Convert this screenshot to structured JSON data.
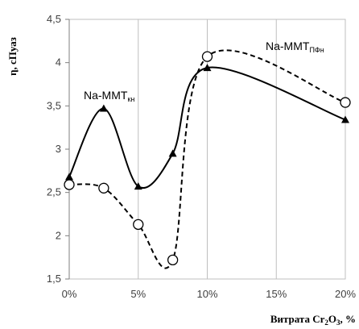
{
  "chart_data": {
    "type": "line",
    "x_tick_labels": [
      "0%",
      "5%",
      "10%",
      "15%",
      "20%"
    ],
    "y_tick_labels": [
      "1,5",
      "2",
      "2,5",
      "3",
      "3,5",
      "4",
      "4,5"
    ],
    "xlim": [
      0,
      20
    ],
    "ylim": [
      1.5,
      4.5
    ],
    "y_ticks": [
      1.5,
      2,
      2.5,
      3,
      3.5,
      4,
      4.5
    ],
    "x_ticks": [
      0,
      5,
      10,
      15,
      20
    ],
    "grid": "vertical",
    "ylabel": "η, сПуаз",
    "xlabel_main": "Витрата Cr",
    "xlabel_sub1": "2",
    "xlabel_mid": "O",
    "xlabel_sub2": "3",
    "xlabel_end": ", %",
    "series": [
      {
        "name_main": "Na-MMT",
        "name_sub": "кн",
        "style": "solid",
        "marker": "triangle",
        "color": "#000000",
        "x": [
          0,
          2.5,
          5,
          7.5,
          10,
          20
        ],
        "y": [
          2.68,
          3.47,
          2.57,
          2.95,
          3.94,
          3.34
        ]
      },
      {
        "name_main": "Na-MMT",
        "name_sub": "ПФн",
        "style": "dashed",
        "marker": "circle",
        "color": "#000000",
        "x": [
          0,
          2.5,
          5,
          7.5,
          10,
          20
        ],
        "y": [
          2.59,
          2.55,
          2.13,
          1.72,
          4.07,
          3.54
        ]
      }
    ]
  }
}
